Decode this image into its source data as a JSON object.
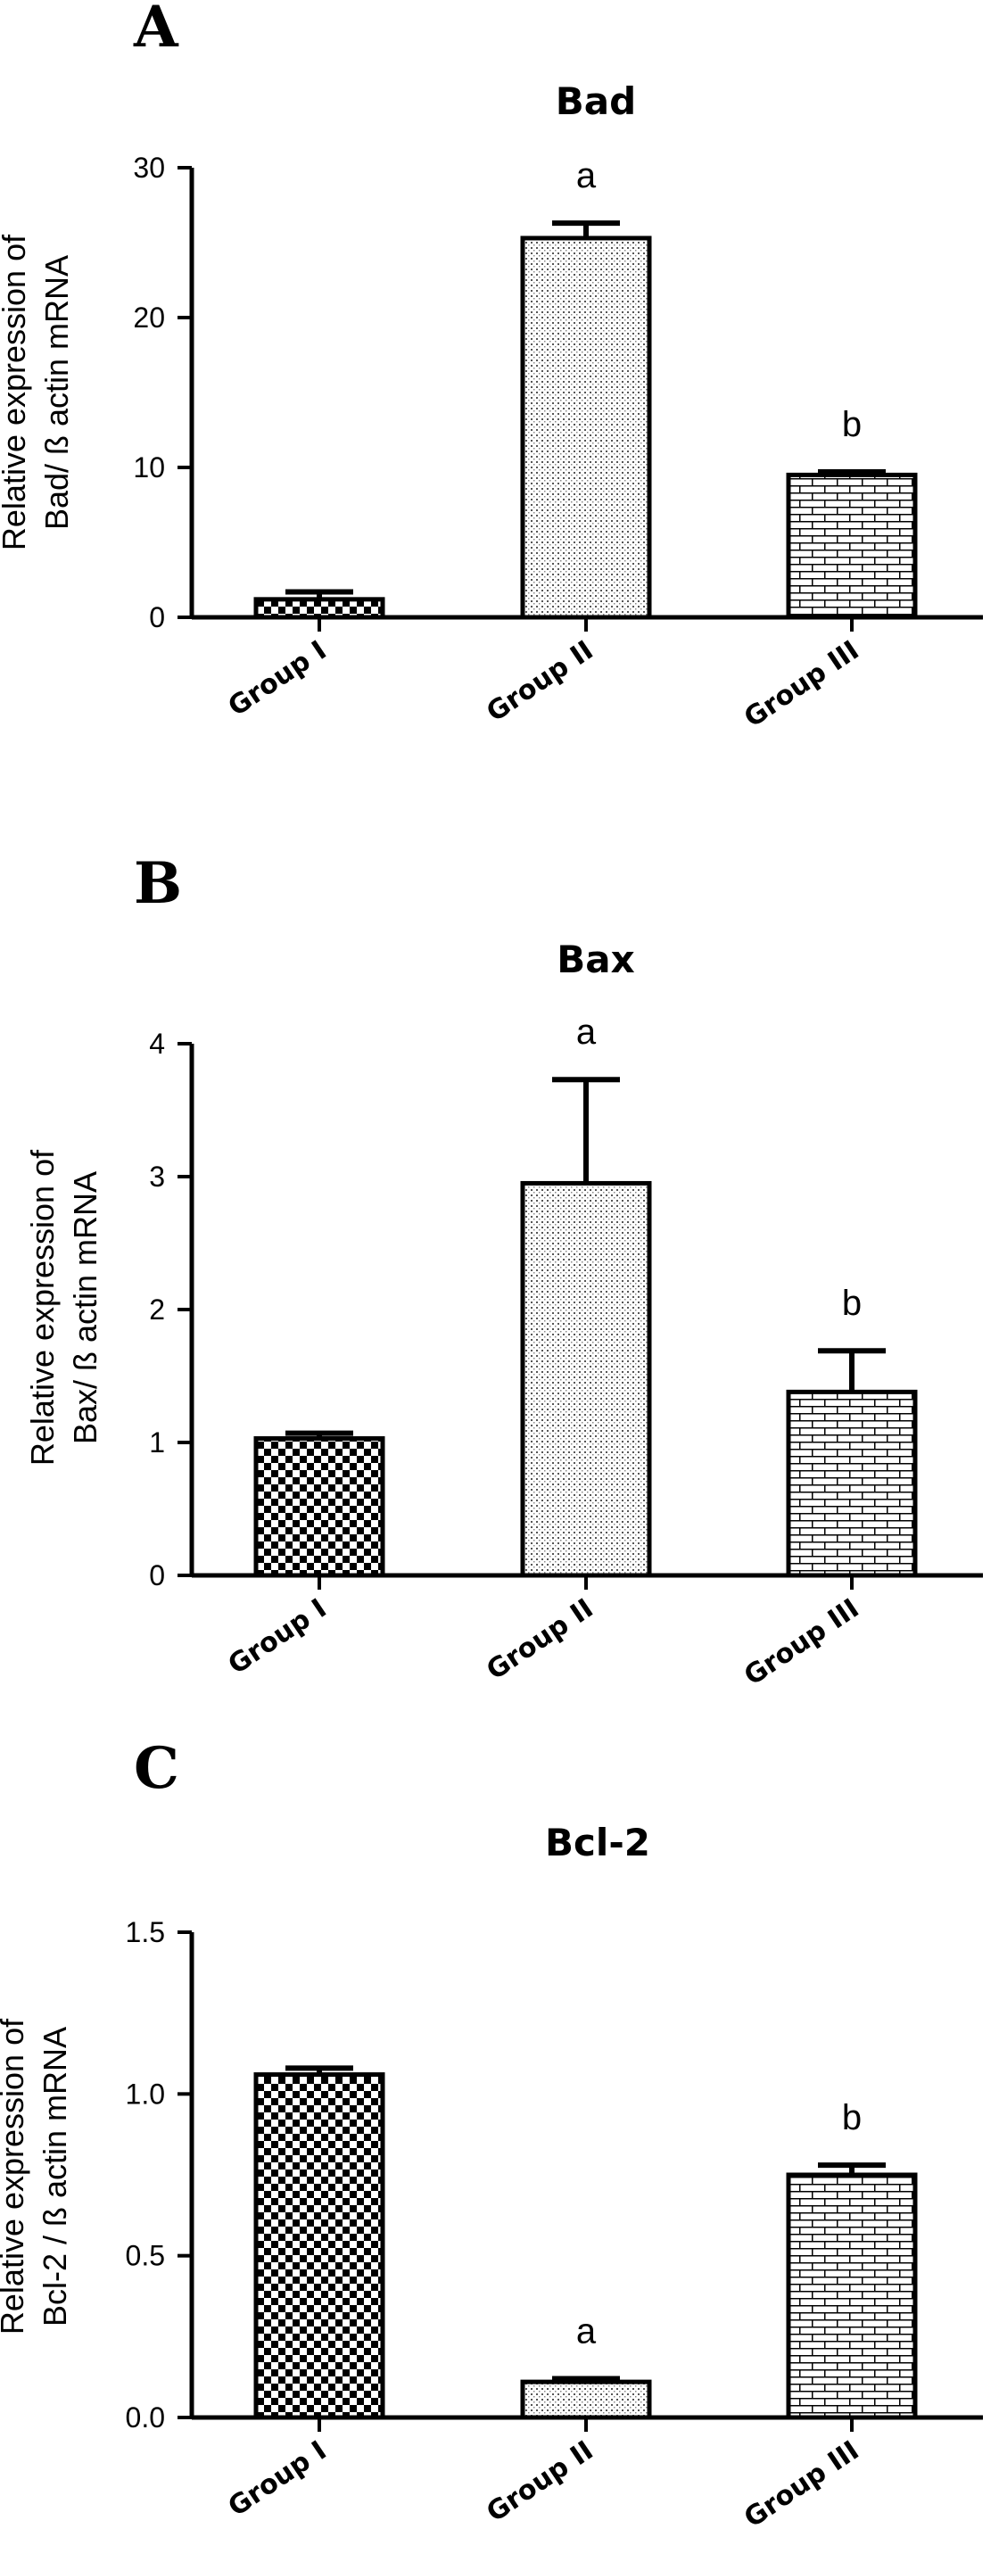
{
  "chart_data": [
    {
      "type": "bar",
      "panel": "A",
      "title": "Bad",
      "ylabel_lines": [
        "Relative expression of",
        "Bad/ ß actin mRNA"
      ],
      "categories": [
        "Group I",
        "Group II",
        "Group III"
      ],
      "values": [
        1.2,
        25.3,
        9.5
      ],
      "errors": [
        0.5,
        1.0,
        0.2
      ],
      "annotations": [
        "",
        "a",
        "b"
      ],
      "ylim": [
        0,
        30
      ],
      "yticks": [
        0,
        10,
        20,
        30
      ],
      "ytick_labels": [
        "0",
        "10",
        "20",
        "30"
      ],
      "patterns": [
        "checker",
        "dots",
        "brick"
      ],
      "grid": false
    },
    {
      "type": "bar",
      "panel": "B",
      "title": "Bax",
      "ylabel_lines": [
        "Relative expression of",
        "Bax/ ß actin mRNA"
      ],
      "categories": [
        "Group I",
        "Group II",
        "Group III"
      ],
      "values": [
        1.03,
        2.95,
        1.38
      ],
      "errors": [
        0.04,
        0.78,
        0.31
      ],
      "annotations": [
        "",
        "a",
        "b"
      ],
      "ylim": [
        0,
        4
      ],
      "yticks": [
        0,
        1,
        2,
        3,
        4
      ],
      "ytick_labels": [
        "0",
        "1",
        "2",
        "3",
        "4"
      ],
      "patterns": [
        "checker",
        "dots",
        "brick"
      ],
      "grid": false
    },
    {
      "type": "bar",
      "panel": "C",
      "title": "Bcl-2",
      "ylabel_lines": [
        "Relative expression of",
        "Bcl-2 / ß actin mRNA"
      ],
      "categories": [
        "Group I",
        "Group II",
        "Group III"
      ],
      "values": [
        1.06,
        0.11,
        0.75
      ],
      "errors": [
        0.02,
        0.01,
        0.03
      ],
      "annotations": [
        "",
        "a",
        "b"
      ],
      "ylim": [
        0,
        1.5
      ],
      "yticks": [
        0,
        0.5,
        1.0,
        1.5
      ],
      "ytick_labels": [
        "0.0",
        "0.5",
        "1.0",
        "1.5"
      ],
      "patterns": [
        "checker",
        "dots",
        "brick"
      ],
      "grid": false
    }
  ]
}
